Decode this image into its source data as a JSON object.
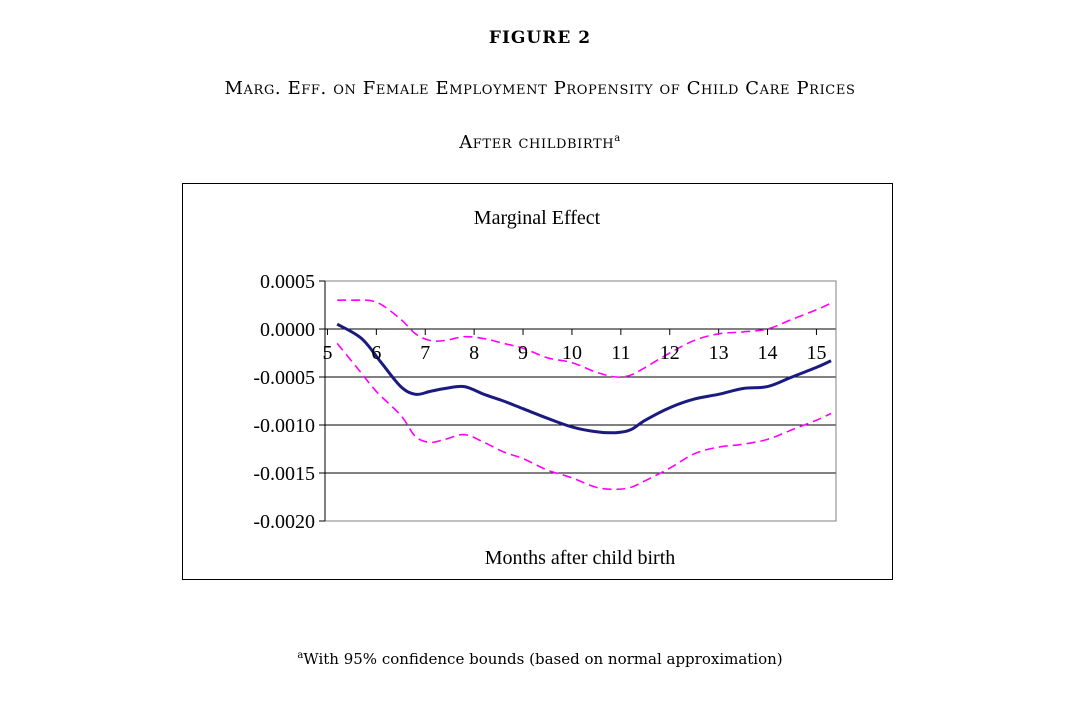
{
  "figure": {
    "label": "FIGURE 2",
    "title": "Marg. Eff. on Female Employment Propensity of Child Care Prices",
    "subtitle": "After childbirth",
    "subtitle_marker": "a",
    "footnote_marker": "a",
    "footnote": "With 95% confidence bounds (based on normal approximation)"
  },
  "chart_data": {
    "type": "line",
    "title": "Marginal Effect",
    "xlabel": "Months after child birth",
    "ylabel": "",
    "x_ticks": [
      "5",
      "6",
      "7",
      "8",
      "9",
      "10",
      "11",
      "12",
      "13",
      "14",
      "15"
    ],
    "y_ticks": [
      "0.0005",
      "0.0000",
      "-0.0005",
      "-0.0010",
      "-0.0015",
      "-0.0020"
    ],
    "xlim": [
      5,
      15
    ],
    "ylim": [
      -0.002,
      0.0005
    ],
    "grid": "horizontal",
    "x_tick_labels_position": "below y=0 line",
    "series": [
      {
        "role": "estimate",
        "color": "#1a1a80",
        "style": "solid",
        "x": [
          5.2,
          5.7,
          6.1,
          6.5,
          6.8,
          7.1,
          7.4,
          7.8,
          8.2,
          8.6,
          9.0,
          9.5,
          10.0,
          10.5,
          10.9,
          11.2,
          11.5,
          12.0,
          12.5,
          13.0,
          13.5,
          14.0,
          14.5,
          15.0,
          15.3
        ],
        "y": [
          5e-05,
          -0.0001,
          -0.00035,
          -0.0006,
          -0.00068,
          -0.00065,
          -0.00062,
          -0.0006,
          -0.00068,
          -0.00075,
          -0.00083,
          -0.00093,
          -0.00102,
          -0.00107,
          -0.00108,
          -0.00105,
          -0.00095,
          -0.00082,
          -0.00073,
          -0.00068,
          -0.00062,
          -0.0006,
          -0.0005,
          -0.0004,
          -0.00033
        ]
      },
      {
        "role": "upper-bound",
        "color": "#ff00ff",
        "style": "dashed",
        "x": [
          5.2,
          5.5,
          6.0,
          6.5,
          6.8,
          7.1,
          7.4,
          7.8,
          8.2,
          8.6,
          9.0,
          9.5,
          10.0,
          10.5,
          10.9,
          11.2,
          11.5,
          12.0,
          12.5,
          13.0,
          13.5,
          14.0,
          14.5,
          15.0,
          15.3
        ],
        "y": [
          0.0003,
          0.0003,
          0.00028,
          0.0001,
          -5e-05,
          -0.00012,
          -0.00012,
          -8e-05,
          -0.0001,
          -0.00015,
          -0.0002,
          -0.0003,
          -0.00035,
          -0.00045,
          -0.0005,
          -0.00048,
          -0.0004,
          -0.00025,
          -0.00012,
          -5e-05,
          -3e-05,
          0.0,
          0.0001,
          0.0002,
          0.00027
        ]
      },
      {
        "role": "lower-bound",
        "color": "#ff00ff",
        "style": "dashed",
        "x": [
          5.2,
          5.6,
          6.0,
          6.5,
          6.8,
          7.1,
          7.4,
          7.8,
          8.2,
          8.6,
          9.0,
          9.5,
          10.0,
          10.5,
          10.9,
          11.2,
          11.5,
          12.0,
          12.5,
          13.0,
          13.5,
          14.0,
          14.5,
          15.0,
          15.3
        ],
        "y": [
          -0.00015,
          -0.0004,
          -0.00065,
          -0.0009,
          -0.00112,
          -0.00118,
          -0.00115,
          -0.0011,
          -0.00118,
          -0.00128,
          -0.00135,
          -0.00147,
          -0.00155,
          -0.00165,
          -0.00167,
          -0.00165,
          -0.00158,
          -0.00145,
          -0.0013,
          -0.00123,
          -0.0012,
          -0.00115,
          -0.00105,
          -0.00095,
          -0.00088
        ]
      }
    ]
  }
}
